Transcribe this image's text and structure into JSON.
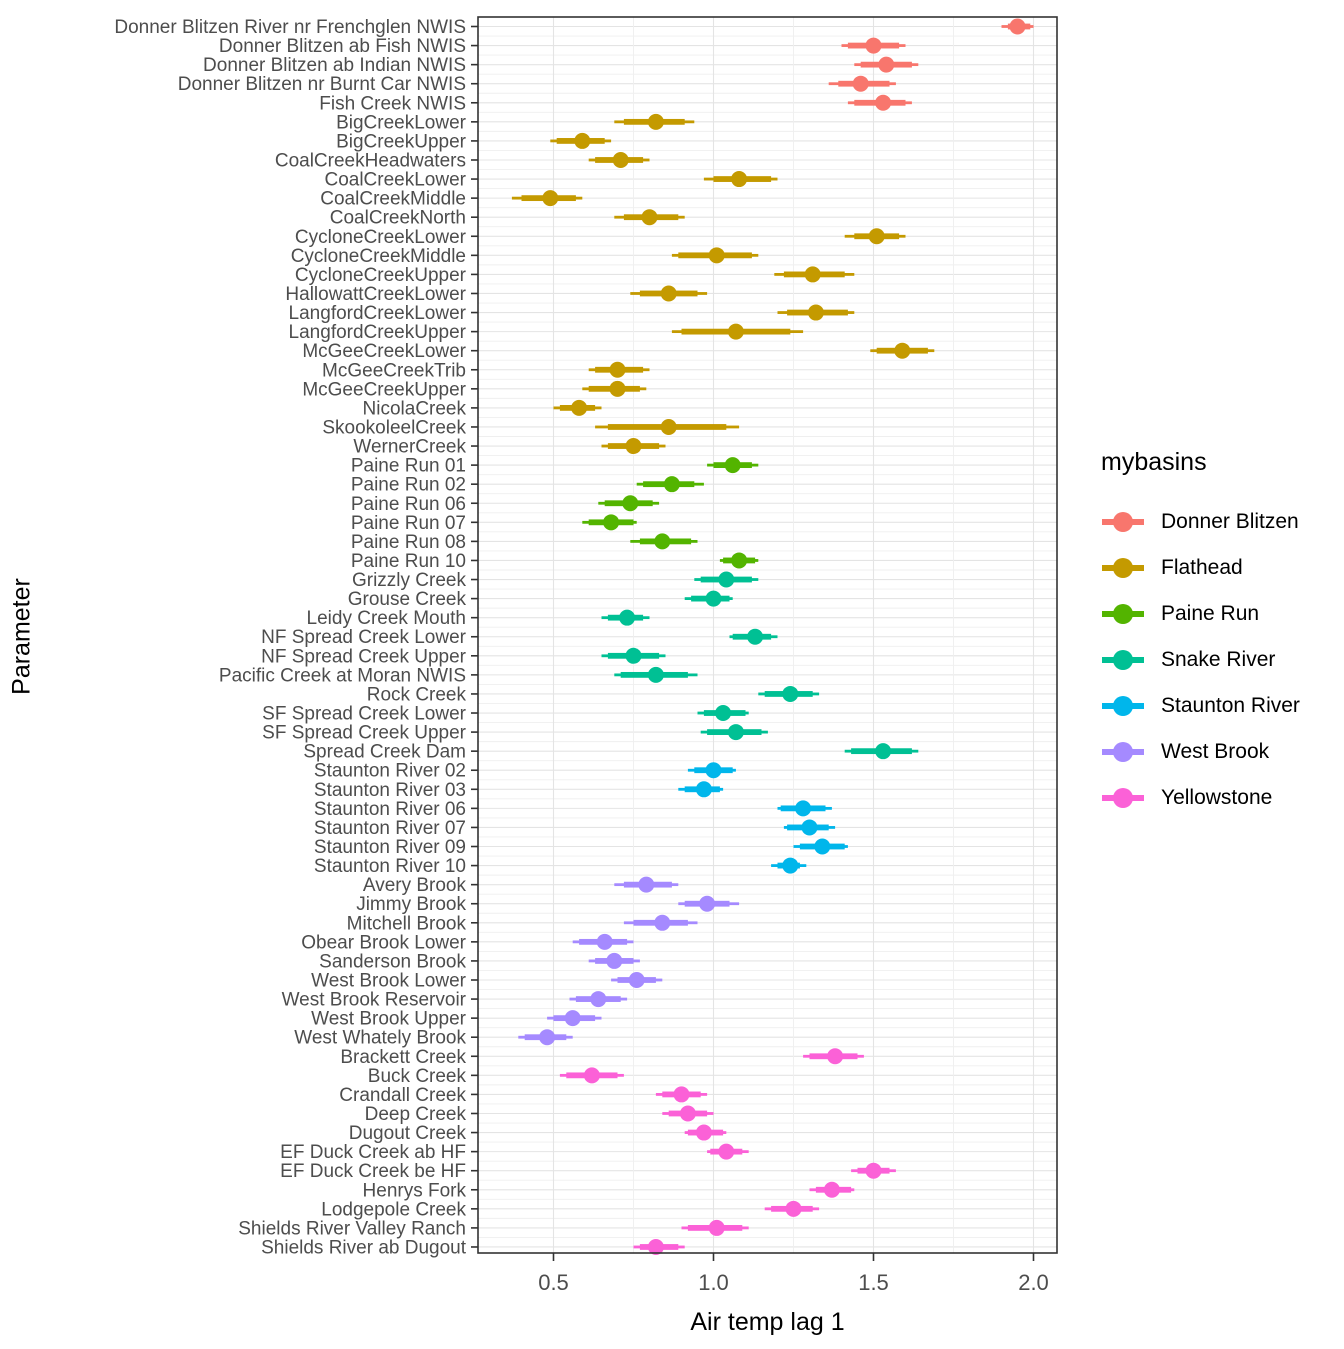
{
  "axis_titles": {
    "x": "Air temp lag 1",
    "y": "Parameter"
  },
  "legend": {
    "title": "mybasins"
  },
  "colors": {
    "panel_border": "#333333",
    "grid_major": "#e4e4e4",
    "grid_minor": "#efefef",
    "tick": "#333333",
    "tick_label": "#4d4d4d"
  },
  "chart_data": {
    "type": "pointrange-dotplot",
    "title": "",
    "xlabel": "Air temp lag 1",
    "ylabel": "Parameter",
    "xlim": [
      0.264,
      2.073
    ],
    "x_ticks": [
      0.5,
      1.0,
      1.5,
      2.0
    ],
    "x_tick_labels": [
      "0.5",
      "1.0",
      "1.5",
      "2.0"
    ],
    "grid": true,
    "legend_position": "right",
    "legend_title": "mybasins",
    "series": [
      {
        "name": "Donner Blitzen",
        "color": "#F8766D",
        "points": [
          {
            "label": "Donner Blitzen River nr Frenchglen NWIS",
            "x": 1.95,
            "lo": 1.9,
            "hi": 2.0,
            "tlo": 1.92,
            "thi": 1.99
          },
          {
            "label": "Donner Blitzen ab Fish NWIS",
            "x": 1.5,
            "lo": 1.4,
            "hi": 1.6,
            "tlo": 1.42,
            "thi": 1.58
          },
          {
            "label": "Donner Blitzen ab Indian NWIS",
            "x": 1.54,
            "lo": 1.44,
            "hi": 1.64,
            "tlo": 1.46,
            "thi": 1.62
          },
          {
            "label": "Donner Blitzen nr Burnt Car NWIS",
            "x": 1.46,
            "lo": 1.36,
            "hi": 1.57,
            "tlo": 1.39,
            "thi": 1.55
          },
          {
            "label": "Fish Creek NWIS",
            "x": 1.53,
            "lo": 1.42,
            "hi": 1.62,
            "tlo": 1.44,
            "thi": 1.6
          }
        ]
      },
      {
        "name": "Flathead",
        "color": "#C49A00",
        "points": [
          {
            "label": "BigCreekLower",
            "x": 0.82,
            "lo": 0.69,
            "hi": 0.94,
            "tlo": 0.72,
            "thi": 0.91
          },
          {
            "label": "BigCreekUpper",
            "x": 0.59,
            "lo": 0.49,
            "hi": 0.68,
            "tlo": 0.51,
            "thi": 0.66
          },
          {
            "label": "CoalCreekHeadwaters",
            "x": 0.71,
            "lo": 0.61,
            "hi": 0.8,
            "tlo": 0.63,
            "thi": 0.78
          },
          {
            "label": "CoalCreekLower",
            "x": 1.08,
            "lo": 0.97,
            "hi": 1.2,
            "tlo": 1.0,
            "thi": 1.18
          },
          {
            "label": "CoalCreekMiddle",
            "x": 0.49,
            "lo": 0.37,
            "hi": 0.59,
            "tlo": 0.4,
            "thi": 0.57
          },
          {
            "label": "CoalCreekNorth",
            "x": 0.8,
            "lo": 0.69,
            "hi": 0.91,
            "tlo": 0.72,
            "thi": 0.89
          },
          {
            "label": "CycloneCreekLower",
            "x": 1.51,
            "lo": 1.41,
            "hi": 1.6,
            "tlo": 1.44,
            "thi": 1.58
          },
          {
            "label": "CycloneCreekMiddle",
            "x": 1.01,
            "lo": 0.87,
            "hi": 1.14,
            "tlo": 0.89,
            "thi": 1.12
          },
          {
            "label": "CycloneCreekUpper",
            "x": 1.31,
            "lo": 1.19,
            "hi": 1.44,
            "tlo": 1.22,
            "thi": 1.41
          },
          {
            "label": "HallowattCreekLower",
            "x": 0.86,
            "lo": 0.74,
            "hi": 0.98,
            "tlo": 0.77,
            "thi": 0.95
          },
          {
            "label": "LangfordCreekLower",
            "x": 1.32,
            "lo": 1.2,
            "hi": 1.44,
            "tlo": 1.23,
            "thi": 1.42
          },
          {
            "label": "LangfordCreekUpper",
            "x": 1.07,
            "lo": 0.87,
            "hi": 1.28,
            "tlo": 0.9,
            "thi": 1.24
          },
          {
            "label": "McGeeCreekLower",
            "x": 1.59,
            "lo": 1.49,
            "hi": 1.69,
            "tlo": 1.51,
            "thi": 1.67
          },
          {
            "label": "McGeeCreekTrib",
            "x": 0.7,
            "lo": 0.61,
            "hi": 0.8,
            "tlo": 0.63,
            "thi": 0.78
          },
          {
            "label": "McGeeCreekUpper",
            "x": 0.7,
            "lo": 0.59,
            "hi": 0.79,
            "tlo": 0.61,
            "thi": 0.77
          },
          {
            "label": "NicolaCreek",
            "x": 0.58,
            "lo": 0.5,
            "hi": 0.65,
            "tlo": 0.52,
            "thi": 0.63
          },
          {
            "label": "SkookoleelCreek",
            "x": 0.86,
            "lo": 0.63,
            "hi": 1.08,
            "tlo": 0.67,
            "thi": 1.04
          },
          {
            "label": "WernerCreek",
            "x": 0.75,
            "lo": 0.65,
            "hi": 0.85,
            "tlo": 0.67,
            "thi": 0.83
          }
        ]
      },
      {
        "name": "Paine Run",
        "color": "#53B400",
        "points": [
          {
            "label": "Paine Run 01",
            "x": 1.06,
            "lo": 0.98,
            "hi": 1.14,
            "tlo": 1.0,
            "thi": 1.12
          },
          {
            "label": "Paine Run 02",
            "x": 0.87,
            "lo": 0.76,
            "hi": 0.97,
            "tlo": 0.78,
            "thi": 0.94
          },
          {
            "label": "Paine Run 06",
            "x": 0.74,
            "lo": 0.64,
            "hi": 0.83,
            "tlo": 0.66,
            "thi": 0.81
          },
          {
            "label": "Paine Run 07",
            "x": 0.68,
            "lo": 0.59,
            "hi": 0.76,
            "tlo": 0.61,
            "thi": 0.75
          },
          {
            "label": "Paine Run 08",
            "x": 0.84,
            "lo": 0.74,
            "hi": 0.95,
            "tlo": 0.77,
            "thi": 0.93
          },
          {
            "label": "Paine Run 10",
            "x": 1.08,
            "lo": 1.02,
            "hi": 1.14,
            "tlo": 1.03,
            "thi": 1.13
          }
        ]
      },
      {
        "name": "Snake River",
        "color": "#00C094",
        "points": [
          {
            "label": "Grizzly Creek",
            "x": 1.04,
            "lo": 0.94,
            "hi": 1.14,
            "tlo": 0.96,
            "thi": 1.12
          },
          {
            "label": "Grouse Creek",
            "x": 1.0,
            "lo": 0.91,
            "hi": 1.06,
            "tlo": 0.93,
            "thi": 1.05
          },
          {
            "label": "Leidy Creek Mouth",
            "x": 0.73,
            "lo": 0.65,
            "hi": 0.8,
            "tlo": 0.67,
            "thi": 0.78
          },
          {
            "label": "NF Spread Creek Lower",
            "x": 1.13,
            "lo": 1.05,
            "hi": 1.2,
            "tlo": 1.06,
            "thi": 1.18
          },
          {
            "label": "NF Spread Creek Upper",
            "x": 0.75,
            "lo": 0.65,
            "hi": 0.85,
            "tlo": 0.67,
            "thi": 0.83
          },
          {
            "label": "Pacific Creek at Moran NWIS",
            "x": 0.82,
            "lo": 0.69,
            "hi": 0.95,
            "tlo": 0.71,
            "thi": 0.92
          },
          {
            "label": "Rock Creek",
            "x": 1.24,
            "lo": 1.14,
            "hi": 1.33,
            "tlo": 1.16,
            "thi": 1.31
          },
          {
            "label": "SF Spread Creek Lower",
            "x": 1.03,
            "lo": 0.95,
            "hi": 1.11,
            "tlo": 0.97,
            "thi": 1.1
          },
          {
            "label": "SF Spread Creek Upper",
            "x": 1.07,
            "lo": 0.96,
            "hi": 1.17,
            "tlo": 0.98,
            "thi": 1.15
          },
          {
            "label": "Spread Creek Dam",
            "x": 1.53,
            "lo": 1.41,
            "hi": 1.64,
            "tlo": 1.43,
            "thi": 1.62
          }
        ]
      },
      {
        "name": "Staunton River",
        "color": "#00B6EB",
        "points": [
          {
            "label": "Staunton River 02",
            "x": 1.0,
            "lo": 0.92,
            "hi": 1.07,
            "tlo": 0.94,
            "thi": 1.06
          },
          {
            "label": "Staunton River 03",
            "x": 0.97,
            "lo": 0.89,
            "hi": 1.03,
            "tlo": 0.91,
            "thi": 1.02
          },
          {
            "label": "Staunton River 06",
            "x": 1.28,
            "lo": 1.2,
            "hi": 1.37,
            "tlo": 1.21,
            "thi": 1.35
          },
          {
            "label": "Staunton River 07",
            "x": 1.3,
            "lo": 1.22,
            "hi": 1.38,
            "tlo": 1.23,
            "thi": 1.36
          },
          {
            "label": "Staunton River 09",
            "x": 1.34,
            "lo": 1.25,
            "hi": 1.42,
            "tlo": 1.27,
            "thi": 1.41
          },
          {
            "label": "Staunton River 10",
            "x": 1.24,
            "lo": 1.18,
            "hi": 1.29,
            "tlo": 1.2,
            "thi": 1.27
          }
        ]
      },
      {
        "name": "West Brook",
        "color": "#A58AFF",
        "points": [
          {
            "label": "Avery Brook",
            "x": 0.79,
            "lo": 0.69,
            "hi": 0.89,
            "tlo": 0.72,
            "thi": 0.87
          },
          {
            "label": "Jimmy Brook",
            "x": 0.98,
            "lo": 0.89,
            "hi": 1.08,
            "tlo": 0.91,
            "thi": 1.05
          },
          {
            "label": "Mitchell Brook",
            "x": 0.84,
            "lo": 0.72,
            "hi": 0.95,
            "tlo": 0.75,
            "thi": 0.92
          },
          {
            "label": "Obear Brook Lower",
            "x": 0.66,
            "lo": 0.56,
            "hi": 0.75,
            "tlo": 0.58,
            "thi": 0.73
          },
          {
            "label": "Sanderson Brook",
            "x": 0.69,
            "lo": 0.61,
            "hi": 0.77,
            "tlo": 0.63,
            "thi": 0.75
          },
          {
            "label": "West Brook Lower",
            "x": 0.76,
            "lo": 0.68,
            "hi": 0.84,
            "tlo": 0.7,
            "thi": 0.82
          },
          {
            "label": "West Brook Reservoir",
            "x": 0.64,
            "lo": 0.55,
            "hi": 0.73,
            "tlo": 0.57,
            "thi": 0.71
          },
          {
            "label": "West Brook Upper",
            "x": 0.56,
            "lo": 0.48,
            "hi": 0.65,
            "tlo": 0.5,
            "thi": 0.63
          },
          {
            "label": "West Whately Brook",
            "x": 0.48,
            "lo": 0.39,
            "hi": 0.56,
            "tlo": 0.41,
            "thi": 0.54
          }
        ]
      },
      {
        "name": "Yellowstone",
        "color": "#FB61D7",
        "points": [
          {
            "label": "Brackett Creek",
            "x": 1.38,
            "lo": 1.28,
            "hi": 1.47,
            "tlo": 1.3,
            "thi": 1.45
          },
          {
            "label": "Buck Creek",
            "x": 0.62,
            "lo": 0.52,
            "hi": 0.72,
            "tlo": 0.54,
            "thi": 0.7
          },
          {
            "label": "Crandall Creek",
            "x": 0.9,
            "lo": 0.82,
            "hi": 0.98,
            "tlo": 0.84,
            "thi": 0.96
          },
          {
            "label": "Deep Creek",
            "x": 0.92,
            "lo": 0.84,
            "hi": 1.0,
            "tlo": 0.86,
            "thi": 0.98
          },
          {
            "label": "Dugout Creek",
            "x": 0.97,
            "lo": 0.91,
            "hi": 1.04,
            "tlo": 0.92,
            "thi": 1.03
          },
          {
            "label": "EF Duck Creek ab HF",
            "x": 1.04,
            "lo": 0.98,
            "hi": 1.11,
            "tlo": 0.99,
            "thi": 1.09
          },
          {
            "label": "EF Duck Creek be HF",
            "x": 1.5,
            "lo": 1.43,
            "hi": 1.57,
            "tlo": 1.45,
            "thi": 1.55
          },
          {
            "label": "Henrys Fork",
            "x": 1.37,
            "lo": 1.3,
            "hi": 1.44,
            "tlo": 1.32,
            "thi": 1.43
          },
          {
            "label": "Lodgepole Creek",
            "x": 1.25,
            "lo": 1.16,
            "hi": 1.33,
            "tlo": 1.18,
            "thi": 1.31
          },
          {
            "label": "Shields River Valley Ranch",
            "x": 1.01,
            "lo": 0.9,
            "hi": 1.11,
            "tlo": 0.92,
            "thi": 1.09
          },
          {
            "label": "Shields River ab Dugout",
            "x": 0.82,
            "lo": 0.75,
            "hi": 0.91,
            "tlo": 0.77,
            "thi": 0.89
          }
        ]
      }
    ]
  }
}
